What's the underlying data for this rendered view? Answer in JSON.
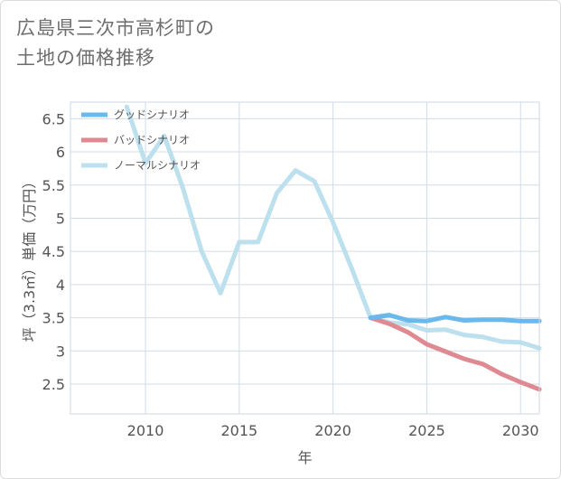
{
  "title": {
    "line1": "広島県三次市高杉町の",
    "line2": "土地の価格推移"
  },
  "chart_data": {
    "type": "line",
    "xlabel": "年",
    "ylabel": "坪（3.3㎡）単価（万円）",
    "xlim": [
      2006,
      2031
    ],
    "ylim": [
      2.05,
      6.75
    ],
    "xticks": [
      2010,
      2015,
      2020,
      2025,
      2030
    ],
    "yticks": [
      2.5,
      3,
      3.5,
      4,
      4.5,
      5,
      5.5,
      6,
      6.5
    ],
    "xtick_labels": [
      "2010",
      "2015",
      "2020",
      "2025",
      "2030"
    ],
    "ytick_labels": [
      "2.5",
      "3",
      "3.5",
      "4",
      "4.5",
      "5",
      "5.5",
      "6",
      "6.5"
    ],
    "legend_position": "top-left",
    "series": [
      {
        "name": "グッドシナリオ",
        "color": "#6bb8ec",
        "x": [
          2022,
          2023,
          2024,
          2025,
          2026,
          2027,
          2028,
          2029,
          2030,
          2031
        ],
        "values": [
          3.5,
          3.54,
          3.46,
          3.45,
          3.51,
          3.46,
          3.47,
          3.47,
          3.45,
          3.45
        ]
      },
      {
        "name": "バッドシナリオ",
        "color": "#df8a93",
        "x": [
          2022,
          2023,
          2024,
          2025,
          2026,
          2027,
          2028,
          2029,
          2030,
          2031
        ],
        "values": [
          3.5,
          3.41,
          3.28,
          3.1,
          2.99,
          2.88,
          2.8,
          2.65,
          2.53,
          2.42
        ]
      },
      {
        "name": "ノーマルシナリオ",
        "color": "#bde0ee",
        "x": [
          2009,
          2010,
          2011,
          2012,
          2013,
          2014,
          2015,
          2016,
          2017,
          2018,
          2019,
          2020,
          2021,
          2022,
          2023,
          2024,
          2025,
          2026,
          2027,
          2028,
          2029,
          2030,
          2031
        ],
        "values": [
          6.68,
          5.83,
          6.24,
          5.45,
          4.5,
          3.87,
          4.64,
          4.64,
          5.38,
          5.72,
          5.56,
          4.94,
          4.24,
          3.5,
          3.43,
          3.4,
          3.31,
          3.32,
          3.24,
          3.21,
          3.14,
          3.13,
          3.04
        ]
      }
    ]
  }
}
